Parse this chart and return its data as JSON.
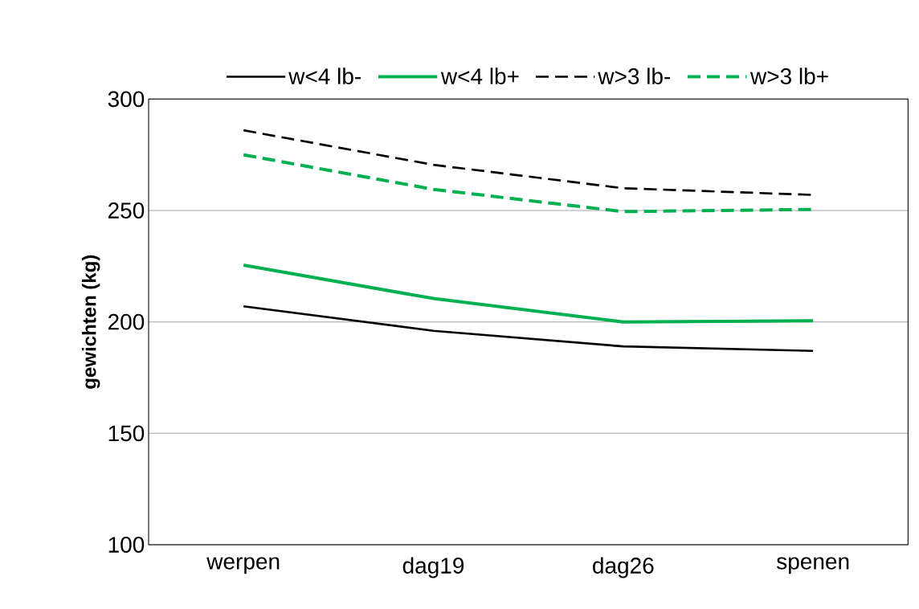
{
  "chart_data": {
    "type": "line",
    "ylabel": "gewichten (kg)",
    "categories": [
      "werpen",
      "dag19",
      "dag26",
      "spenen"
    ],
    "series": [
      {
        "name": "w<4 lb-",
        "color": "#000000",
        "line_style": "solid",
        "values": [
          207,
          196,
          189,
          187
        ]
      },
      {
        "name": "w<4 lb+",
        "color": "#00b050",
        "line_style": "solid",
        "values": [
          225.5,
          210.5,
          200,
          200.5
        ]
      },
      {
        "name": "w>3 lb-",
        "color": "#000000",
        "line_style": "dashed",
        "values": [
          286,
          270.5,
          260,
          257
        ]
      },
      {
        "name": "w>3 lb+",
        "color": "#00b050",
        "line_style": "dashed",
        "values": [
          275,
          259.5,
          249.5,
          250.5
        ]
      }
    ],
    "ylim": [
      100,
      300
    ],
    "yticks": [
      100,
      150,
      200,
      250,
      300
    ],
    "grid": "y",
    "legend": "top",
    "marker": "none"
  }
}
